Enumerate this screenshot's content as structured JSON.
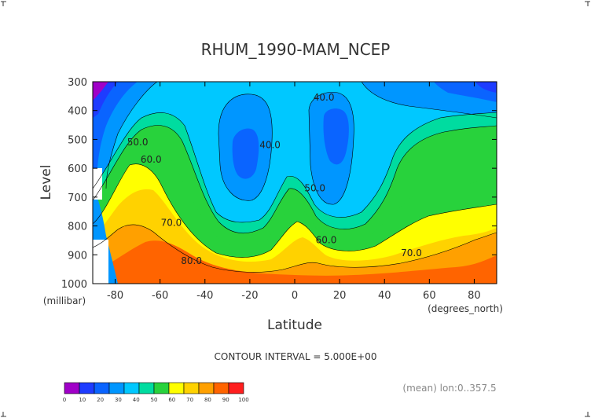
{
  "chart_data": {
    "type": "heatmap",
    "title": "RHUM_1990-MAM_NCEP",
    "xlabel": "Latitude",
    "xunit": "(degrees_north)",
    "ylabel": "Level",
    "yunit": "(millibar)",
    "xlim": [
      -90,
      90
    ],
    "ylim": [
      1000,
      300
    ],
    "xticks": [
      -80,
      -60,
      -40,
      -20,
      0,
      20,
      40,
      60,
      80
    ],
    "xtick_labels": [
      "-80",
      "-60",
      "-40",
      "-20",
      "0",
      "20",
      "40",
      "60",
      "80"
    ],
    "yticks": [
      300,
      400,
      500,
      600,
      700,
      800,
      900,
      1000
    ],
    "ytick_labels": [
      "300",
      "400",
      "500",
      "600",
      "700",
      "800",
      "900",
      "1000"
    ],
    "contour_interval_label": "CONTOUR INTERVAL = 5.000E+00",
    "contour_labels": [
      {
        "text": "40.0",
        "lat": 13,
        "level": 365
      },
      {
        "text": "40.0",
        "lat": -11,
        "level": 530
      },
      {
        "text": "50.0",
        "lat": -70,
        "level": 520
      },
      {
        "text": "60.0",
        "lat": -64,
        "level": 580
      },
      {
        "text": "50.0",
        "lat": 9,
        "level": 680
      },
      {
        "text": "70.0",
        "lat": -55,
        "level": 800
      },
      {
        "text": "60.0",
        "lat": 14,
        "level": 860
      },
      {
        "text": "70.0",
        "lat": 52,
        "level": 905
      },
      {
        "text": "80.0",
        "lat": -46,
        "level": 932
      }
    ],
    "colorbar": {
      "levels": [
        0,
        10,
        20,
        30,
        40,
        50,
        60,
        70,
        80,
        90,
        100
      ],
      "labels": [
        "0",
        "10",
        "20",
        "30",
        "40",
        "50",
        "60",
        "70",
        "80",
        "90",
        "100"
      ],
      "colors": [
        "#a000c8",
        "#1e3cff",
        "#0a64ff",
        "#0096ff",
        "#00c8ff",
        "#00dca0",
        "#28d23c",
        "#ffff00",
        "#ffd200",
        "#ffa000",
        "#ff6400",
        "#ff1e1e"
      ]
    },
    "annotation": "(mean) lon:0..357.5"
  }
}
